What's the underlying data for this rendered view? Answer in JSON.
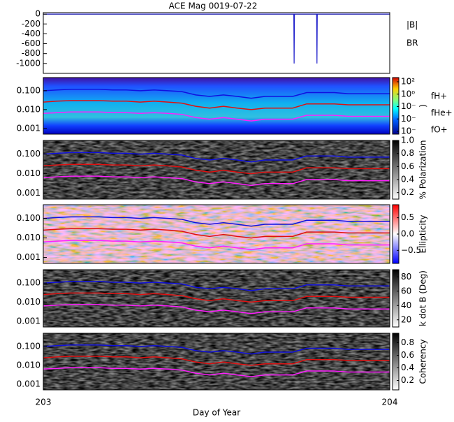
{
  "chart_data": [
    {
      "type": "line",
      "title": "ACE Mag 0019-07-22",
      "xlim": [
        203,
        204
      ],
      "ylim": [
        -1200,
        30
      ],
      "yticks": [
        0,
        -200,
        -400,
        -600,
        -800,
        -1000
      ],
      "series": [
        {
          "name": "|B|",
          "color": "#000000",
          "x": [
            203,
            204
          ],
          "values": [
            0,
            0
          ]
        },
        {
          "name": "BR",
          "color": "#2222cc",
          "x": [
            203,
            203.723,
            203.724,
            203.725,
            203.789,
            203.79,
            203.791,
            204
          ],
          "values": [
            0,
            0,
            -1000,
            0,
            0,
            -1000,
            0,
            0
          ]
        }
      ]
    },
    {
      "type": "spectrogram",
      "colormap": "jet",
      "ylim": [
        0.0005,
        0.5
      ],
      "log": true,
      "yticks": [
        {
          "value": 0.1,
          "label": "0.100"
        },
        {
          "value": 0.01,
          "label": "0.010"
        },
        0.001
      ],
      "zticks": [
        "10²",
        "10⁰",
        "10⁻",
        "10⁻",
        "10⁻"
      ],
      "zlabel": ")",
      "x": [
        203,
        203.04,
        203.08,
        203.12,
        203.16,
        203.2,
        203.24,
        203.28,
        203.32,
        203.36,
        203.4,
        203.44,
        203.48,
        203.52,
        203.56,
        203.6,
        203.64,
        203.68,
        203.72,
        203.76,
        203.8,
        203.84,
        203.88,
        203.92,
        203.96,
        204
      ],
      "series": [
        {
          "name": "fH+",
          "color": "#1010e0",
          "values": [
            0.1,
            0.11,
            0.12,
            0.12,
            0.12,
            0.11,
            0.11,
            0.1,
            0.11,
            0.1,
            0.09,
            0.06,
            0.05,
            0.06,
            0.05,
            0.04,
            0.05,
            0.05,
            0.05,
            0.08,
            0.08,
            0.08,
            0.07,
            0.07,
            0.07,
            0.07
          ]
        },
        {
          "name": "fHe+",
          "color": "#e01010",
          "values": [
            0.025,
            0.028,
            0.03,
            0.03,
            0.03,
            0.028,
            0.028,
            0.025,
            0.028,
            0.025,
            0.022,
            0.015,
            0.012,
            0.015,
            0.012,
            0.01,
            0.012,
            0.012,
            0.012,
            0.02,
            0.02,
            0.02,
            0.018,
            0.018,
            0.018,
            0.018
          ]
        },
        {
          "name": "fO+",
          "color": "#ff20ff",
          "values": [
            0.0063,
            0.0069,
            0.0075,
            0.0075,
            0.0075,
            0.0069,
            0.0069,
            0.0063,
            0.0069,
            0.0063,
            0.0056,
            0.0038,
            0.0031,
            0.0038,
            0.0031,
            0.0025,
            0.0031,
            0.0031,
            0.0031,
            0.005,
            0.005,
            0.005,
            0.0044,
            0.0044,
            0.0044,
            0.0044
          ]
        }
      ]
    },
    {
      "type": "spectrogram",
      "colormap": "gray",
      "ylim": [
        0.0005,
        0.5
      ],
      "log": true,
      "yticks": [
        {
          "value": 0.1,
          "label": "0.100"
        },
        {
          "value": 0.01,
          "label": "0.010"
        },
        0.001
      ],
      "zlim": [
        0.1,
        1
      ],
      "zticks": [
        {
          "value": 1,
          "label": "1.0"
        },
        0.8,
        0.6,
        0.4,
        0.2
      ],
      "zlabel": "% Polarization"
    },
    {
      "type": "spectrogram",
      "colormap": "bwr",
      "ylim": [
        0.0005,
        0.5
      ],
      "log": true,
      "yticks": [
        {
          "value": 0.1,
          "label": "0.100"
        },
        {
          "value": 0.01,
          "label": "0.010"
        },
        0.001
      ],
      "zlim": [
        -0.9,
        0.9
      ],
      "zticks": [
        0.5,
        {
          "value": 0,
          "label": "0.0"
        },
        {
          "value": -0.5,
          "label": "−0.5"
        }
      ],
      "zlabel": "Ellipticity"
    },
    {
      "type": "spectrogram",
      "colormap": "gray",
      "ylim": [
        0.0005,
        0.5
      ],
      "log": true,
      "yticks": [
        {
          "value": 0.1,
          "label": "0.100"
        },
        {
          "value": 0.01,
          "label": "0.010"
        },
        0.001
      ],
      "zlim": [
        10,
        90
      ],
      "zticks": [
        80,
        60,
        40,
        20
      ],
      "zlabel": "k dot B (Deg)"
    },
    {
      "type": "spectrogram",
      "colormap": "gray",
      "ylim": [
        0.0005,
        0.5
      ],
      "log": true,
      "yticks": [
        {
          "value": 0.1,
          "label": "0.100"
        },
        {
          "value": 0.01,
          "label": "0.010"
        },
        0.001
      ],
      "zlim": [
        0.05,
        0.95
      ],
      "zticks": [
        0.8,
        0.6,
        0.4,
        0.2
      ],
      "zlabel": "Coherency",
      "xlabel": "Day of Year",
      "xticks": [
        203,
        204
      ]
    }
  ]
}
